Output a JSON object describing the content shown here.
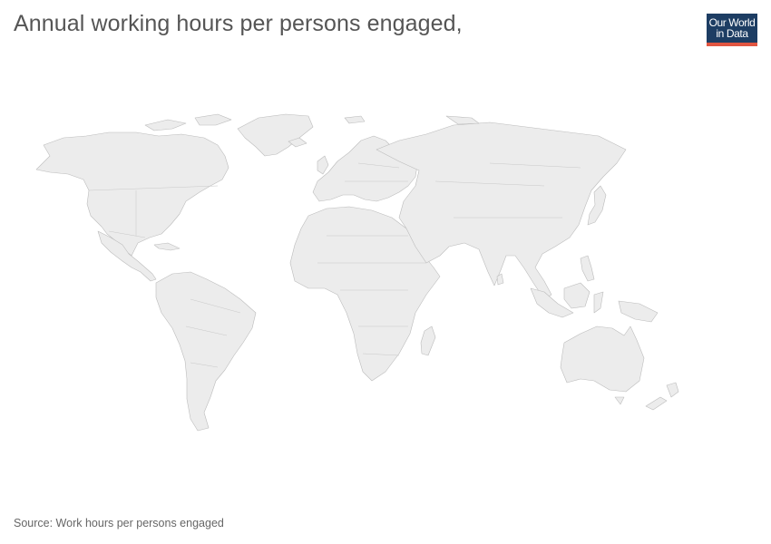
{
  "header": {
    "title": "Annual working hours per persons engaged,"
  },
  "logo": {
    "line1": "Our World",
    "line2": "in Data",
    "background_color": "#1d3d63",
    "accent_color": "#e15541"
  },
  "map": {
    "fill_color": "#ececec",
    "border_color": "#bcbcbc",
    "regions": [
      "North America",
      "Greenland",
      "Central America",
      "South America",
      "Europe",
      "Africa",
      "Asia",
      "Australia",
      "New Zealand",
      "Madagascar",
      "Japan",
      "Indonesia",
      "Iceland",
      "United Kingdom",
      "Sri Lanka",
      "Philippines",
      "New Guinea"
    ]
  },
  "footer": {
    "source": "Source: Work hours per persons engaged"
  }
}
